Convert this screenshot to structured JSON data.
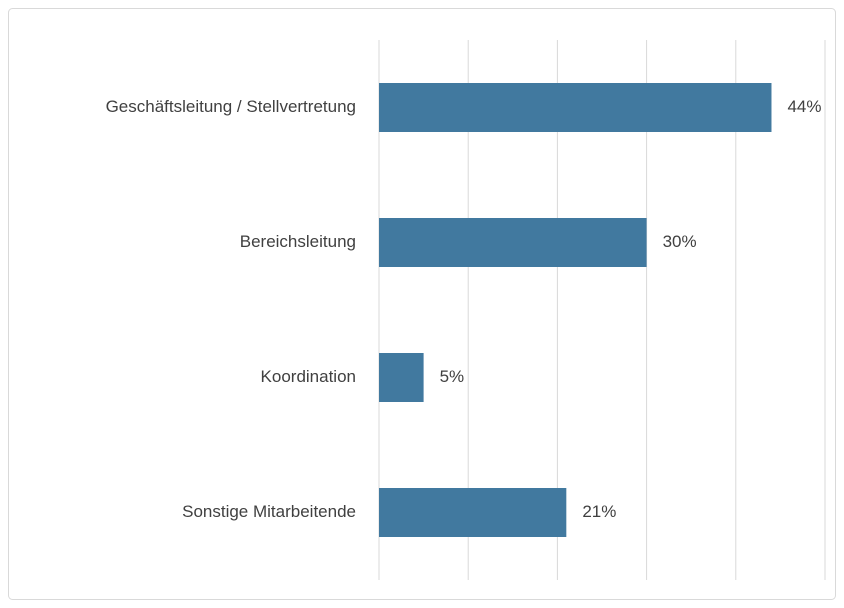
{
  "chart_data": {
    "type": "bar",
    "orientation": "horizontal",
    "categories": [
      "Geschäftsleitung / Stellvertretung",
      "Bereichsleitung",
      "Koordination",
      "Sonstige Mitarbeitende"
    ],
    "values": [
      44,
      30,
      5,
      21
    ],
    "value_labels": [
      "44%",
      "30%",
      "5%",
      "21%"
    ],
    "color": "#41799f",
    "xlim": [
      0,
      50
    ],
    "xticks": [
      0,
      10,
      20,
      30,
      40,
      50
    ],
    "grid": true
  }
}
